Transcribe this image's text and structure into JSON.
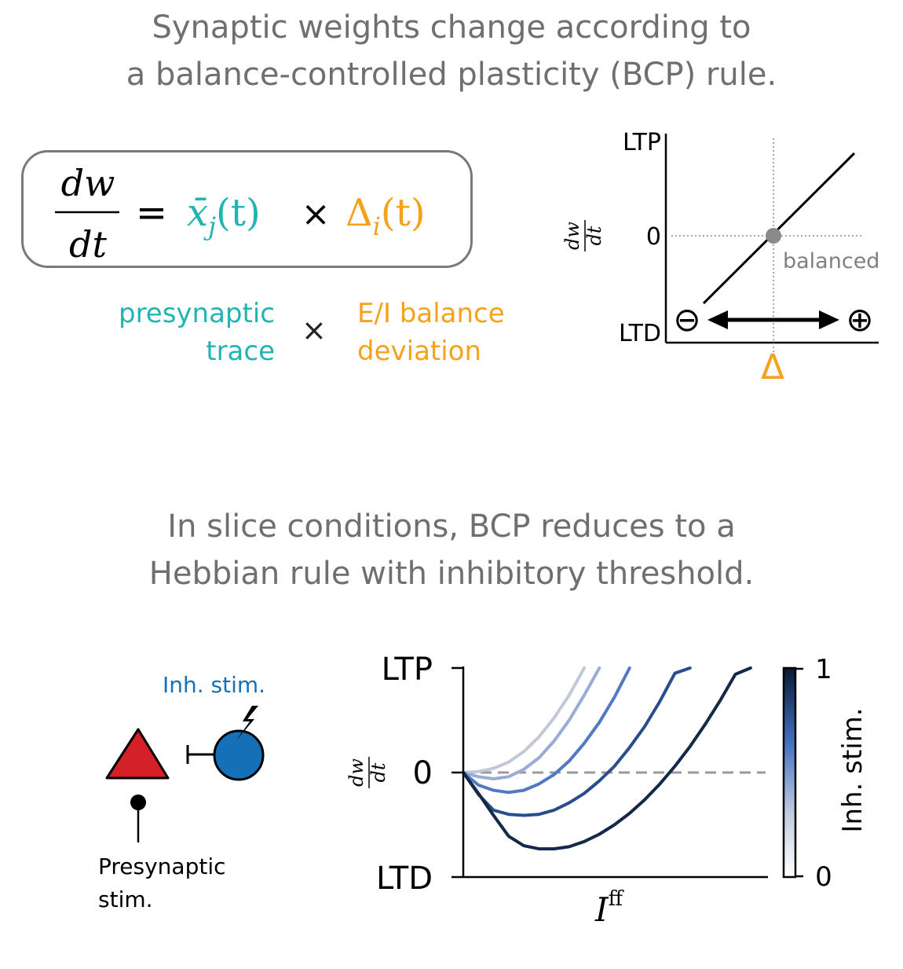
{
  "top_heading": {
    "line1": "Synaptic weights change according to",
    "line2": "a balance-controlled plasticity (BCP) rule."
  },
  "equation": {
    "lhs_num": "dw",
    "lhs_den": "dt",
    "equals": "=",
    "trace": "x̄",
    "trace_sub": "j",
    "trace_arg": "(t)",
    "times": "×",
    "delta": "Δ",
    "delta_sub": "i",
    "delta_arg": "(t)"
  },
  "equation_legend": {
    "left_line1": "presynaptic",
    "left_line2": "trace",
    "times": "×",
    "right_line1": "E/I balance",
    "right_line2": "deviation"
  },
  "bcp_plot": {
    "y_top": "LTP",
    "y_zero": "0",
    "y_bottom": "LTD",
    "ylabel_num": "dw",
    "ylabel_den": "dt",
    "balanced_label": "balanced",
    "minus_symbol": "⊖",
    "plus_symbol": "⊕",
    "xlabel": "Δ"
  },
  "bottom_heading": {
    "line1": "In slice conditions, BCP reduces to a",
    "line2": "Hebbian rule with inhibitory threshold."
  },
  "schematic": {
    "inh_label": "Inh. stim.",
    "pre_line1": "Presynaptic",
    "pre_line2": "stim."
  },
  "chart_data": {
    "type": "line",
    "x_label_base": "I",
    "x_label_sup": "ff",
    "y_label_num": "dw",
    "y_label_den": "dt",
    "y_ticks": [
      "LTP",
      "0",
      "LTD"
    ],
    "colorbar": {
      "label": "Inh. stim.",
      "min_label": "0",
      "max_label": "1",
      "colors": [
        "#ffffff",
        "#c3cde0",
        "#3f6fbf",
        "#0a1a33"
      ]
    },
    "x": [
      0,
      0.05,
      0.1,
      0.15,
      0.2,
      0.25,
      0.3,
      0.35,
      0.4,
      0.45,
      0.5,
      0.55,
      0.6,
      0.65,
      0.7,
      0.75,
      0.8,
      0.85,
      0.9,
      0.95,
      1.0
    ],
    "series": [
      {
        "color": "#c2c8d8",
        "values": [
          0,
          0.01,
          0.04,
          0.1,
          0.2,
          0.34,
          0.52,
          0.74,
          1.0,
          null,
          null,
          null,
          null,
          null,
          null,
          null,
          null,
          null,
          null,
          null,
          null
        ]
      },
      {
        "color": "#98acd6",
        "values": [
          0,
          -0.04,
          -0.06,
          -0.04,
          0.03,
          0.14,
          0.3,
          0.5,
          0.74,
          1.0,
          null,
          null,
          null,
          null,
          null,
          null,
          null,
          null,
          null,
          null,
          null
        ]
      },
      {
        "color": "#5379c4",
        "values": [
          0,
          -0.12,
          -0.17,
          -0.19,
          -0.17,
          -0.11,
          -0.02,
          0.11,
          0.28,
          0.48,
          0.72,
          1.0,
          null,
          null,
          null,
          null,
          null,
          null,
          null,
          null,
          null
        ]
      },
      {
        "color": "#2a4e8c",
        "values": [
          0,
          -0.21,
          -0.36,
          -0.4,
          -0.41,
          -0.4,
          -0.36,
          -0.29,
          -0.2,
          -0.08,
          0.06,
          0.24,
          0.44,
          0.68,
          0.95,
          1.0,
          null,
          null,
          null,
          null,
          null
        ]
      },
      {
        "color": "#14284a",
        "values": [
          0,
          -0.2,
          -0.41,
          -0.61,
          -0.7,
          -0.73,
          -0.73,
          -0.71,
          -0.66,
          -0.59,
          -0.5,
          -0.39,
          -0.26,
          -0.11,
          0.06,
          0.25,
          0.46,
          0.69,
          0.94,
          1.0,
          null
        ]
      }
    ],
    "zero_line": {
      "style": "dashed",
      "color": "#999999"
    },
    "ylim": [
      -1,
      1
    ],
    "xlim": [
      0,
      1
    ]
  }
}
